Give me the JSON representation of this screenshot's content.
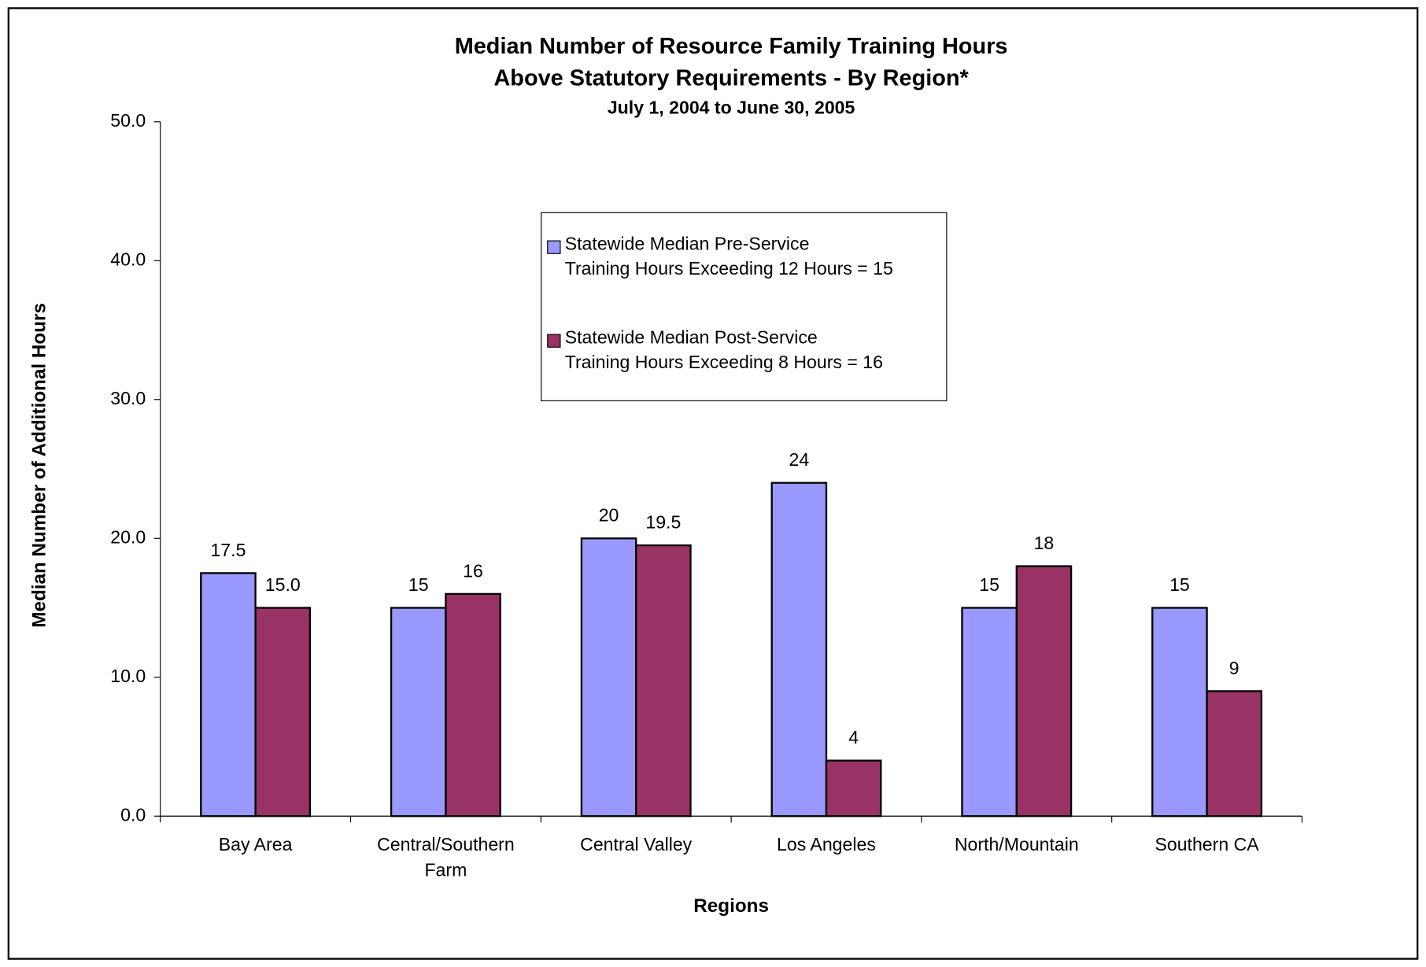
{
  "chart_data": {
    "type": "bar",
    "title": "Median Number of Resource Family Training Hours\nAbove Statutory Requirements - By Region*",
    "subtitle": "July 1, 2004 to June 30, 2005",
    "x_label": "Regions",
    "y_label": "Median Number of Additional Hours",
    "categories": [
      "Bay Area",
      "Central/Southern Farm",
      "Central Valley",
      "Los Angeles",
      "North/Mountain",
      "Southern CA"
    ],
    "series": [
      {
        "name": "Statewide Median Pre-Service\nTraining Hours Exceeding 12 Hours = 15",
        "color": "#9999ff",
        "values": [
          17.5,
          15,
          20,
          24,
          15,
          15
        ]
      },
      {
        "name": "Statewide Median Post-Service\nTraining Hours Exceeding 8 Hours = 16",
        "color": "#993366",
        "values": [
          15,
          16,
          19.5,
          4,
          18,
          9
        ],
        "value_labels": [
          "15.0",
          "16",
          "19.5",
          "4",
          "18",
          "9"
        ]
      }
    ],
    "ylim": [
      0,
      50
    ],
    "yticks": [
      {
        "value": 0,
        "label": "0.0"
      },
      {
        "value": 10,
        "label": "10.0"
      },
      {
        "value": 20,
        "label": "20.0"
      },
      {
        "value": 30,
        "label": "30.0"
      },
      {
        "value": 40,
        "label": "40.0"
      },
      {
        "value": 50,
        "label": "50.0"
      }
    ],
    "grid": false
  }
}
